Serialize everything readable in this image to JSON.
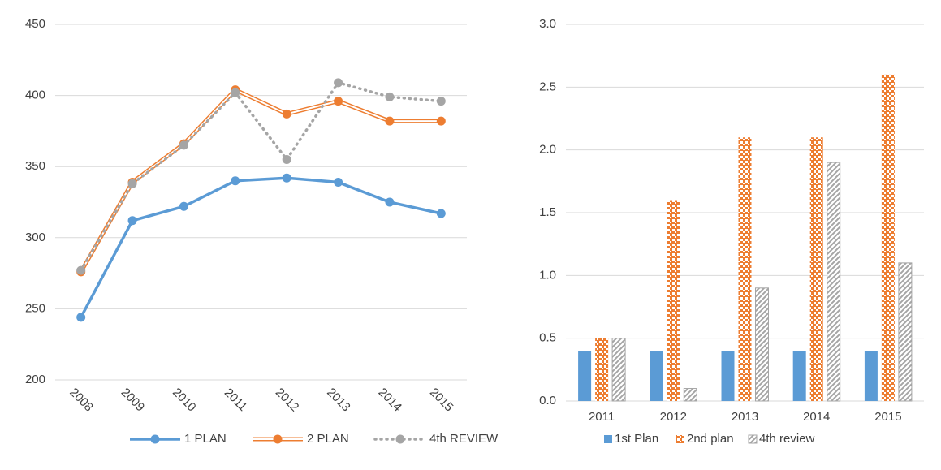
{
  "chart_data": [
    {
      "type": "line",
      "categories": [
        "2008",
        "2009",
        "2010",
        "2011",
        "2012",
        "2013",
        "2014",
        "2015"
      ],
      "series": [
        {
          "name": "1 PLAN",
          "color": "#5b9bd5",
          "style": "solid",
          "values": [
            244,
            312,
            322,
            340,
            342,
            339,
            325,
            317
          ]
        },
        {
          "name": "2 PLAN",
          "color": "#ed7d31",
          "style": "double",
          "values": [
            276,
            339,
            366,
            404,
            387,
            396,
            382,
            382
          ]
        },
        {
          "name": "4th REVIEW",
          "color": "#a5a5a5",
          "style": "dotted",
          "values": [
            277,
            338,
            365,
            402,
            355,
            409,
            399,
            396
          ]
        }
      ],
      "ylim": [
        200,
        450
      ],
      "yticks": [
        200,
        250,
        300,
        350,
        400,
        450
      ],
      "grid": true,
      "legend": "bottom"
    },
    {
      "type": "bar",
      "categories": [
        "2011",
        "2012",
        "2013",
        "2014",
        "2015"
      ],
      "series": [
        {
          "name": "1st Plan",
          "color": "#5b9bd5",
          "pattern": "solid",
          "values": [
            0.4,
            0.4,
            0.4,
            0.4,
            0.4
          ]
        },
        {
          "name": "2nd plan",
          "color": "#ed7d31",
          "pattern": "checker",
          "values": [
            0.5,
            1.6,
            2.1,
            2.1,
            2.6
          ]
        },
        {
          "name": "4th review",
          "color": "#a5a5a5",
          "pattern": "diagonal",
          "values": [
            0.5,
            0.1,
            0.9,
            1.9,
            1.1
          ]
        }
      ],
      "ylim": [
        0,
        3
      ],
      "yticks": [
        {
          "value": 0,
          "label": "0.0"
        },
        0.5,
        {
          "value": 1,
          "label": "1.0"
        },
        1.5,
        {
          "value": 2,
          "label": "2.0"
        },
        2.5,
        {
          "value": 3,
          "label": "3.0"
        }
      ],
      "grid": true,
      "legend": "bottom"
    }
  ]
}
